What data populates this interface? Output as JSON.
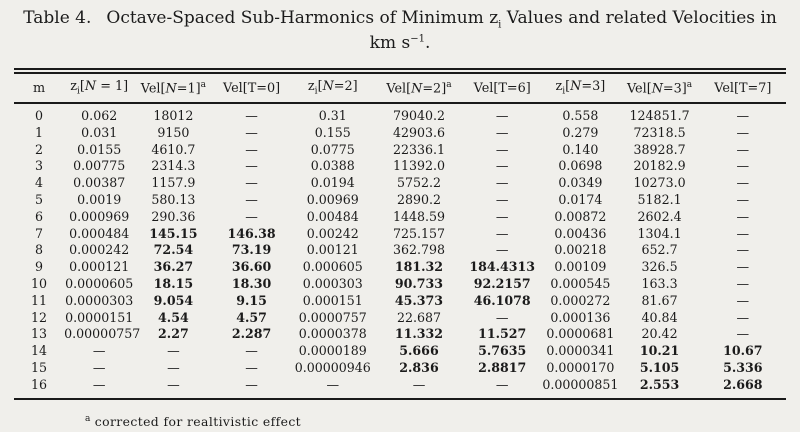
{
  "caption": {
    "label": "Table 4.",
    "before_sub": "Octave-Spaced Sub-Harmonics of Minimum z",
    "sub": "i",
    "after_sub": " Values and related Velocities in",
    "unit_base": "km s",
    "unit_sup": "−1",
    "unit_end": "."
  },
  "table": {
    "columns": [
      {
        "name": "m",
        "parts": [
          {
            "k": "t",
            "s": "m"
          }
        ]
      },
      {
        "name": "zi-n1",
        "parts": [
          {
            "k": "t",
            "s": "z"
          },
          {
            "k": "sub",
            "s": "i"
          },
          {
            "k": "t",
            "s": "["
          },
          {
            "k": "i",
            "s": "N"
          },
          {
            "k": "t",
            "s": " = 1]"
          }
        ]
      },
      {
        "name": "vel-n1",
        "parts": [
          {
            "k": "t",
            "s": "Vel["
          },
          {
            "k": "i",
            "s": "N"
          },
          {
            "k": "t",
            "s": "=1]"
          },
          {
            "k": "sup",
            "s": "a"
          }
        ]
      },
      {
        "name": "vel-t0",
        "parts": [
          {
            "k": "t",
            "s": "Vel[T=0]"
          }
        ]
      },
      {
        "name": "zi-n2",
        "parts": [
          {
            "k": "t",
            "s": "z"
          },
          {
            "k": "sub",
            "s": "i"
          },
          {
            "k": "t",
            "s": "["
          },
          {
            "k": "i",
            "s": "N"
          },
          {
            "k": "t",
            "s": "=2]"
          }
        ]
      },
      {
        "name": "vel-n2",
        "parts": [
          {
            "k": "t",
            "s": "Vel["
          },
          {
            "k": "i",
            "s": "N"
          },
          {
            "k": "t",
            "s": "=2]"
          },
          {
            "k": "sup",
            "s": "a"
          }
        ]
      },
      {
        "name": "vel-t6",
        "parts": [
          {
            "k": "t",
            "s": "Vel[T=6]"
          }
        ]
      },
      {
        "name": "zi-n3",
        "parts": [
          {
            "k": "t",
            "s": "z"
          },
          {
            "k": "sub",
            "s": "i"
          },
          {
            "k": "t",
            "s": "["
          },
          {
            "k": "i",
            "s": "N"
          },
          {
            "k": "t",
            "s": "=3]"
          }
        ]
      },
      {
        "name": "vel-n3",
        "parts": [
          {
            "k": "t",
            "s": "Vel["
          },
          {
            "k": "i",
            "s": "N"
          },
          {
            "k": "t",
            "s": "=3]"
          },
          {
            "k": "sup",
            "s": "a"
          }
        ]
      },
      {
        "name": "vel-t7",
        "parts": [
          {
            "k": "t",
            "s": "Vel[T=7]"
          }
        ]
      }
    ],
    "rows": [
      [
        "0",
        "0.062",
        "18012",
        "—",
        "0.31",
        "79040.2",
        "—",
        "0.558",
        "124851.7",
        "—"
      ],
      [
        "1",
        "0.031",
        "9150",
        "—",
        "0.155",
        "42903.6",
        "—",
        "0.279",
        "72318.5",
        "—"
      ],
      [
        "2",
        "0.0155",
        "4610.7",
        "—",
        "0.0775",
        "22336.1",
        "—",
        "0.140",
        "38928.7",
        "—"
      ],
      [
        "3",
        "0.00775",
        "2314.3",
        "—",
        "0.0388",
        "11392.0",
        "—",
        "0.0698",
        "20182.9",
        "—"
      ],
      [
        "4",
        "0.00387",
        "1157.9",
        "—",
        "0.0194",
        "5752.2",
        "—",
        "0.0349",
        "10273.0",
        "—"
      ],
      [
        "5",
        "0.0019",
        "580.13",
        "—",
        "0.00969",
        "2890.2",
        "—",
        "0.0174",
        "5182.1",
        "—"
      ],
      [
        "6",
        "0.000969",
        "290.36",
        "—",
        "0.00484",
        "1448.59",
        "—",
        "0.00872",
        "2602.4",
        "—"
      ],
      [
        "7",
        "0.000484",
        {
          "v": "145.15",
          "b": true
        },
        {
          "v": "146.38",
          "b": true
        },
        "0.00242",
        "725.157",
        "—",
        "0.00436",
        "1304.1",
        "—"
      ],
      [
        "8",
        "0.000242",
        {
          "v": "72.54",
          "b": true
        },
        {
          "v": "73.19",
          "b": true
        },
        "0.00121",
        "362.798",
        "—",
        "0.00218",
        "652.7",
        "—"
      ],
      [
        "9",
        "0.000121",
        {
          "v": "36.27",
          "b": true
        },
        {
          "v": "36.60",
          "b": true
        },
        "0.000605",
        {
          "v": "181.32",
          "b": true
        },
        {
          "v": "184.4313",
          "b": true
        },
        "0.00109",
        "326.5",
        "—"
      ],
      [
        "10",
        "0.0000605",
        {
          "v": "18.15",
          "b": true
        },
        {
          "v": "18.30",
          "b": true
        },
        "0.000303",
        {
          "v": "90.733",
          "b": true
        },
        {
          "v": "92.2157",
          "b": true
        },
        "0.000545",
        "163.3",
        "—"
      ],
      [
        "11",
        "0.0000303",
        {
          "v": "9.054",
          "b": true
        },
        {
          "v": "9.15",
          "b": true
        },
        "0.000151",
        {
          "v": "45.373",
          "b": true
        },
        {
          "v": "46.1078",
          "b": true
        },
        "0.000272",
        "81.67",
        "—"
      ],
      [
        "12",
        "0.0000151",
        {
          "v": "4.54",
          "b": true
        },
        {
          "v": "4.57",
          "b": true
        },
        "0.0000757",
        "22.687",
        "—",
        "0.000136",
        "40.84",
        "—"
      ],
      [
        "13",
        "0.00000757",
        {
          "v": "2.27",
          "b": true
        },
        {
          "v": "2.287",
          "b": true
        },
        "0.0000378",
        {
          "v": "11.332",
          "b": true
        },
        {
          "v": "11.527",
          "b": true
        },
        "0.0000681",
        "20.42",
        "—"
      ],
      [
        "14",
        "—",
        "—",
        "—",
        "0.0000189",
        {
          "v": "5.666",
          "b": true
        },
        {
          "v": "5.7635",
          "b": true
        },
        "0.0000341",
        {
          "v": "10.21",
          "b": true
        },
        {
          "v": "10.67",
          "b": true
        }
      ],
      [
        "15",
        "—",
        "—",
        "—",
        "0.00000946",
        {
          "v": "2.836",
          "b": true
        },
        {
          "v": "2.8817",
          "b": true
        },
        "0.0000170",
        {
          "v": "5.105",
          "b": true
        },
        {
          "v": "5.336",
          "b": true
        }
      ],
      [
        "16",
        "—",
        "—",
        "—",
        "—",
        "—",
        "—",
        "0.00000851",
        {
          "v": "2.553",
          "b": true
        },
        {
          "v": "2.668",
          "b": true
        }
      ]
    ]
  },
  "footnote": {
    "marker": "a",
    "text": "corrected for realtivistic effect"
  }
}
